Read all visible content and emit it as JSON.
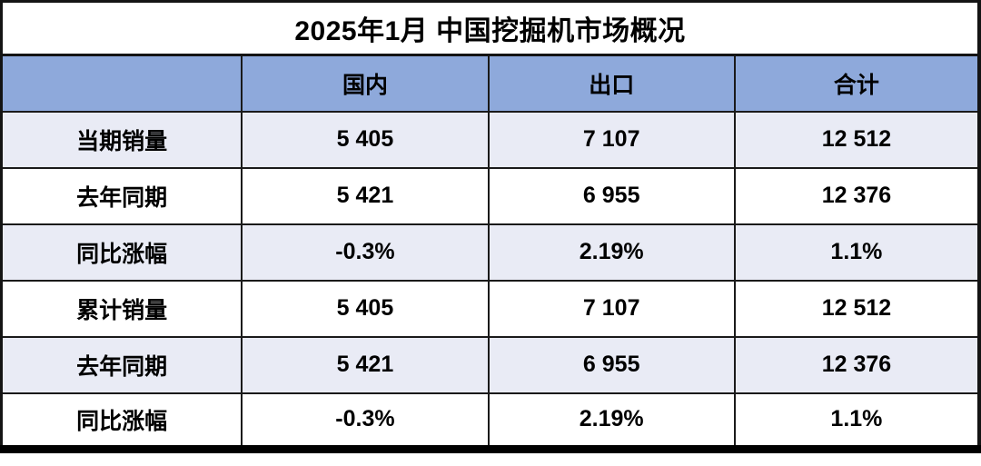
{
  "colors": {
    "header_bg": "#8EA9DB",
    "row_alt_bg": "#E9EBF5",
    "row_bg": "#FFFFFF",
    "title_bg": "#FFFFFF",
    "border": "#1A1A1A",
    "text": "#000000"
  },
  "table": {
    "title": "2025年1月 中国挖掘机市场概况",
    "columns": [
      "",
      "国内",
      "出口",
      "合计"
    ],
    "rows": [
      {
        "label": "当期销量",
        "values": [
          "5 405",
          "7 107",
          "12 512"
        ]
      },
      {
        "label": "去年同期",
        "values": [
          "5 421",
          "6 955",
          "12 376"
        ]
      },
      {
        "label": "同比涨幅",
        "values": [
          "-0.3%",
          "2.19%",
          "1.1%"
        ]
      },
      {
        "label": "累计销量",
        "values": [
          "5 405",
          "7 107",
          "12 512"
        ]
      },
      {
        "label": "去年同期",
        "values": [
          "5 421",
          "6 955",
          "12 376"
        ]
      },
      {
        "label": "同比涨幅",
        "values": [
          "-0.3%",
          "2.19%",
          "1.1%"
        ]
      }
    ]
  },
  "chart_data": {
    "type": "table",
    "title": "2025年1月 中国挖掘机市场概况",
    "columns": [
      "国内",
      "出口",
      "合计"
    ],
    "row_labels": [
      "当期销量",
      "去年同期",
      "同比涨幅",
      "累计销量",
      "去年同期",
      "同比涨幅"
    ],
    "rows": [
      [
        "5 405",
        "7 107",
        "12 512"
      ],
      [
        "5 421",
        "6 955",
        "12 376"
      ],
      [
        "-0.3%",
        "2.19%",
        "1.1%"
      ],
      [
        "5 405",
        "7 107",
        "12 512"
      ],
      [
        "5 421",
        "6 955",
        "12 376"
      ],
      [
        "-0.3%",
        "2.19%",
        "1.1%"
      ]
    ],
    "notes": "Current-month sales, prior-year same period, YoY change; cumulative sales, prior-year same period, YoY change — domestic / export / total excavator units, China, January 2025"
  }
}
